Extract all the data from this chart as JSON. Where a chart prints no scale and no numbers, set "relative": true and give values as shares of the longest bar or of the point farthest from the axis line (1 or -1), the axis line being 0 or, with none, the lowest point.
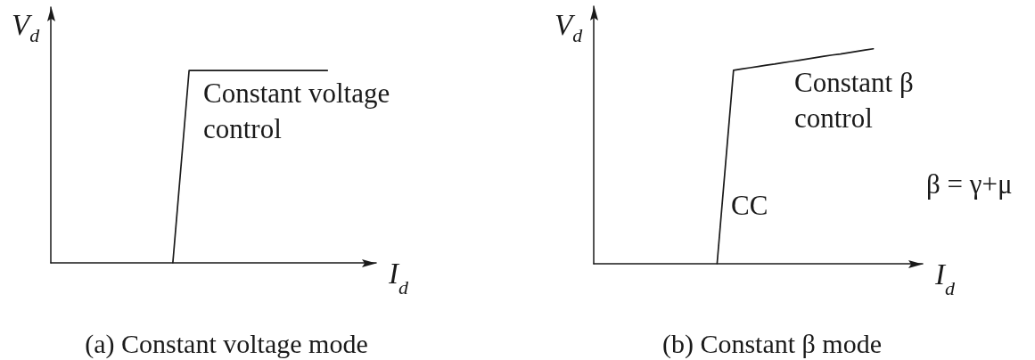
{
  "chart_data": [
    {
      "type": "line",
      "title": "(a) Constant voltage mode",
      "xlabel": "I$_{d}$",
      "ylabel": "V$_{d}$",
      "annotations": [
        "Constant voltage control"
      ],
      "relative": true,
      "line_style": "solid",
      "categories": [
        null,
        null,
        null,
        null,
        null,
        null,
        null,
        null,
        null,
        null,
        null,
        null,
        null,
        null,
        null,
        null,
        null,
        null,
        null,
        null,
        null,
        null,
        null,
        null,
        null,
        null,
        null,
        null,
        null,
        null,
        null,
        null,
        null,
        null,
        null,
        null,
        null,
        null,
        null,
        null,
        null
      ],
      "series": [
        {
          "color": "#1a1a1a",
          "values": [
            null,
            null,
            null,
            null,
            null,
            null,
            null,
            null,
            null,
            null,
            null,
            null,
            null,
            null,
            null,
            0,
            0.5,
            1,
            1,
            1,
            1,
            1,
            1,
            1,
            1,
            1,
            1,
            1,
            1,
            1,
            1,
            1,
            1,
            1,
            1,
            null,
            null,
            null,
            null,
            null,
            null
          ]
        }
      ]
    },
    {
      "type": "line",
      "title": "(b) Constant β mode",
      "xlabel": "I$_{d}$",
      "ylabel": "V$_{d}$",
      "annotations": [
        "Constant β control",
        "CC",
        "β = γ+μ"
      ],
      "relative": true,
      "line_style": "solid",
      "categories": [
        null,
        null,
        null,
        null,
        null,
        null,
        null,
        null,
        null,
        null,
        null,
        null,
        null,
        null,
        null,
        null,
        null,
        null,
        null,
        null,
        null,
        null,
        null,
        null,
        null,
        null,
        null,
        null,
        null,
        null,
        null,
        null,
        null,
        null,
        null,
        null,
        null,
        null,
        null,
        null,
        null
      ],
      "series": [
        {
          "color": "#1a1a1a",
          "values": [
            null,
            null,
            null,
            null,
            null,
            null,
            null,
            null,
            null,
            null,
            null,
            null,
            null,
            null,
            null,
            0,
            0.45,
            0.9,
            0.906,
            0.912,
            0.918,
            0.924,
            0.929,
            0.935,
            0.941,
            0.947,
            0.953,
            0.959,
            0.965,
            0.971,
            0.976,
            0.982,
            0.988,
            0.994,
            1,
            null,
            null,
            null,
            null,
            null,
            null
          ]
        }
      ]
    }
  ]
}
